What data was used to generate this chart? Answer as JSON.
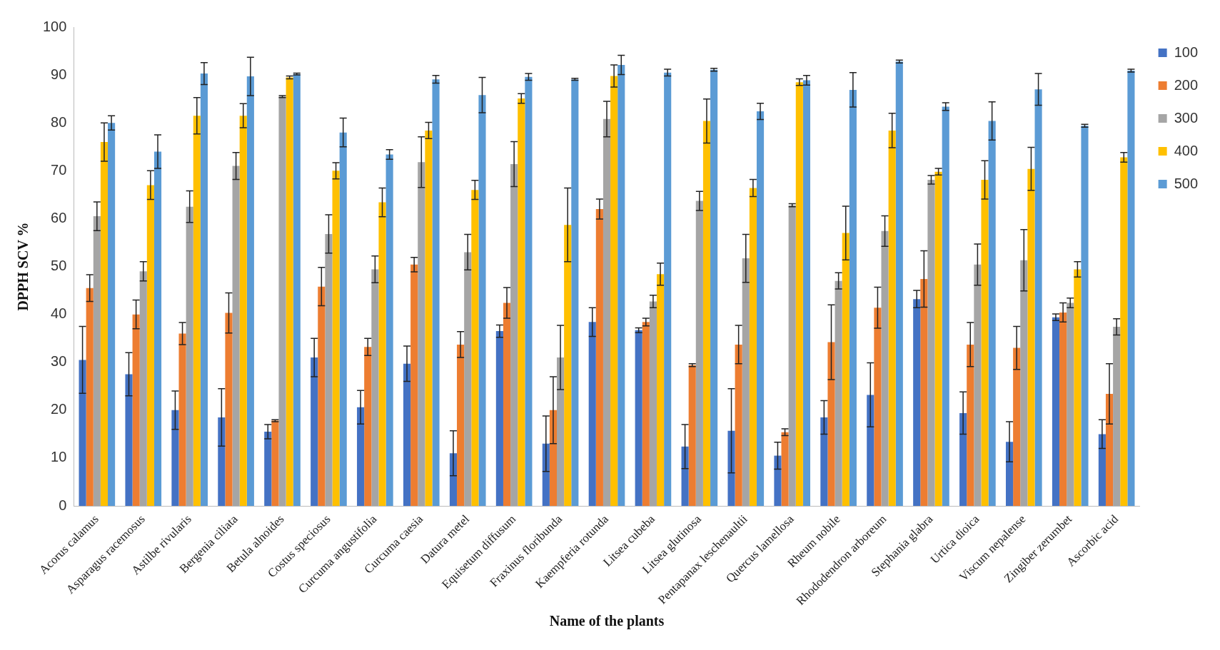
{
  "chart_data": {
    "type": "bar",
    "xlabel": "Name of the plants",
    "ylabel": "DPPH SCV %",
    "categories": [
      "Acorus calamus",
      "Asparagus racemosus",
      "Astilbe rivularis",
      "Bergenia ciliata",
      "Betula alnoides",
      "Costus speciosus",
      "Curcuma angustifolia",
      "Curcuma caesia",
      "Datura metel",
      "Equisetum diffusum",
      "Fraxinus floribunda",
      "Kaempferia rotunda",
      "Litsea cubeba",
      "Litsea glutinosa",
      "Pentapanax leschenaultii",
      "Quercus lamellosa",
      "Rheum nobile",
      "Rhododendron arboreum",
      "Stephania glabra",
      "Urtica dioica",
      "Viscum nepalense",
      "Zingiber zerumbet",
      "Ascorbic acid"
    ],
    "series": [
      {
        "name": "100",
        "color": "#4472c4",
        "values": [
          30.5,
          27.5,
          20,
          18.5,
          15.5,
          31,
          20.6,
          29.7,
          11,
          36.5,
          13,
          38.4,
          36.7,
          12.4,
          15.7,
          10.5,
          18.5,
          23.2,
          43.2,
          19.4,
          13.4,
          39.4,
          15
        ],
        "errors": [
          7,
          4.5,
          4,
          6,
          1.5,
          4,
          3.5,
          3.7,
          4.7,
          1.3,
          5.8,
          3,
          0.5,
          4.6,
          8.8,
          2.8,
          3.5,
          6.7,
          1.8,
          4.4,
          4.2,
          0.7,
          3
        ]
      },
      {
        "name": "200",
        "color": "#ed7d31",
        "values": [
          45.5,
          40,
          36,
          40.3,
          17.8,
          45.8,
          33.2,
          50.4,
          33.7,
          42.4,
          20,
          62,
          38.4,
          29.4,
          33.7,
          15.4,
          34.2,
          41.4,
          47.4,
          33.7,
          33,
          40.4,
          23.4
        ],
        "errors": [
          2.8,
          3,
          2.3,
          4.2,
          0.2,
          4,
          1.8,
          1.5,
          2.7,
          3.2,
          7,
          2.1,
          0.8,
          0.3,
          4,
          0.7,
          7.8,
          4.3,
          5.9,
          4.6,
          4.5,
          2,
          6.3
        ]
      },
      {
        "name": "300",
        "color": "#a5a5a5",
        "values": [
          60.5,
          49,
          62.5,
          71,
          85.5,
          56.8,
          49.4,
          71.8,
          53,
          71.4,
          31,
          80.8,
          42.7,
          63.7,
          51.7,
          62.8,
          47,
          57.4,
          68.1,
          50.4,
          51.3,
          42.4,
          37.4
        ],
        "errors": [
          3,
          2,
          3.3,
          2.8,
          0.2,
          4,
          2.8,
          5.3,
          3.7,
          4.7,
          6.7,
          3.7,
          1.3,
          2,
          5,
          0.3,
          1.7,
          3.2,
          0.9,
          4.3,
          6.4,
          1,
          1.7
        ]
      },
      {
        "name": "400",
        "color": "#ffc000",
        "values": [
          76,
          67,
          81.5,
          81.5,
          89.5,
          70,
          63.4,
          78.4,
          66,
          85.1,
          58.7,
          89.8,
          48.4,
          80.4,
          66.4,
          88.5,
          57,
          78.4,
          69.8,
          68.1,
          70.4,
          49.4,
          72.8
        ],
        "errors": [
          4,
          3,
          3.8,
          2.5,
          0.3,
          1.7,
          3,
          1.7,
          2,
          1,
          7.7,
          2.3,
          2.3,
          4.6,
          1.8,
          0.7,
          5.6,
          3.6,
          0.7,
          4,
          4.5,
          1.6,
          1
        ]
      },
      {
        "name": "500",
        "color": "#5b9bd5",
        "values": [
          80,
          74,
          90.3,
          89.7,
          90.2,
          78,
          73.4,
          89.1,
          85.8,
          89.6,
          89.1,
          92.1,
          90.5,
          91.1,
          82.4,
          88.9,
          86.9,
          92.8,
          83.4,
          80.4,
          87,
          79.4,
          90.9
        ],
        "errors": [
          1.5,
          3.5,
          2.3,
          4,
          0.2,
          3,
          1,
          0.8,
          3.7,
          0.7,
          0.2,
          2,
          0.7,
          0.3,
          1.7,
          1,
          3.6,
          0.3,
          0.8,
          4,
          3.3,
          0.3,
          0.3
        ]
      }
    ],
    "ylim": [
      0,
      100
    ],
    "yticks": [
      0,
      10,
      20,
      30,
      40,
      50,
      60,
      70,
      80,
      90,
      100
    ],
    "grid": false,
    "legend": "right"
  }
}
